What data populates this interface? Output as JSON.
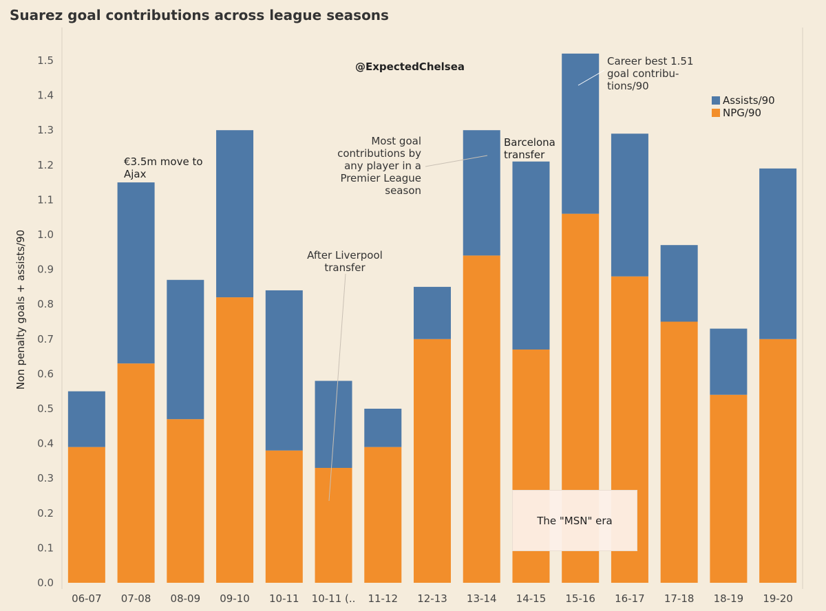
{
  "chart_data": {
    "type": "bar",
    "stacked": true,
    "title": "Suarez goal contributions across league seasons",
    "xlabel": "",
    "ylabel": "Non penalty goals + assists/90",
    "ylim": [
      0,
      1.55
    ],
    "yticks": [
      0.0,
      0.1,
      0.2,
      0.3,
      0.4,
      0.5,
      0.6,
      0.7,
      0.8,
      0.9,
      1.0,
      1.1,
      1.2,
      1.3,
      1.4,
      1.5
    ],
    "ytick_labels": [
      "0.0",
      "0.1",
      "0.2",
      "0.3",
      "0.4",
      "0.5",
      "0.6",
      "0.7",
      "0.8",
      "0.9",
      "1.0",
      "1.1",
      "1.2",
      "1.3",
      "1.4",
      "1.5"
    ],
    "categories": [
      "06-07",
      "07-08",
      "08-09",
      "09-10",
      "10-11",
      "10-11 (..",
      "11-12",
      "12-13",
      "13-14",
      "14-15",
      "15-16",
      "16-17",
      "17-18",
      "18-19",
      "19-20"
    ],
    "series": [
      {
        "name": "NPG/90",
        "color": "#f28e2b",
        "values": [
          0.39,
          0.63,
          0.47,
          0.82,
          0.38,
          0.33,
          0.39,
          0.7,
          0.94,
          0.67,
          1.06,
          0.88,
          0.75,
          0.54,
          0.7
        ]
      },
      {
        "name": "Assists/90",
        "color": "#4e79a7",
        "values": [
          0.16,
          0.52,
          0.4,
          0.48,
          0.46,
          0.25,
          0.11,
          0.15,
          0.36,
          0.54,
          0.46,
          0.41,
          0.22,
          0.19,
          0.49
        ]
      }
    ],
    "legend": {
      "position": "top-right",
      "entries": [
        "Assists/90",
        "NPG/90"
      ]
    }
  },
  "annotations": {
    "handle": "@ExpectedChelsea",
    "ajax": [
      "€3.5m move to",
      "Ajax"
    ],
    "liverpool": [
      "After Liverpool",
      "transfer"
    ],
    "most_goals": [
      "Most goal",
      "contributions by",
      "any player in a",
      "Premier League",
      "season"
    ],
    "barcelona": [
      "Barcelona",
      "transfer"
    ],
    "career_best": [
      "Career best 1.51",
      "goal contribu-",
      "tions/90"
    ],
    "msn": "The \"MSN\" era"
  }
}
